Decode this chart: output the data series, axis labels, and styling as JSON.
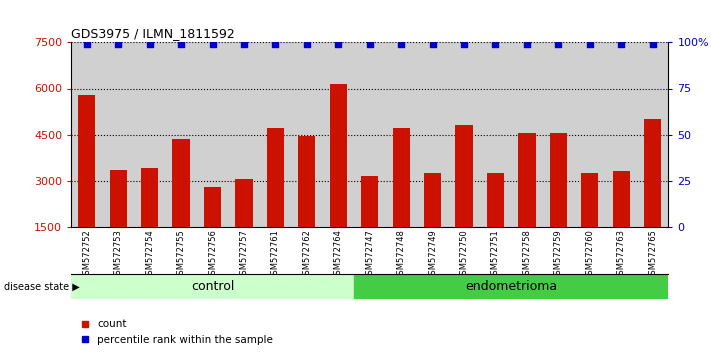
{
  "title": "GDS3975 / ILMN_1811592",
  "samples": [
    "GSM572752",
    "GSM572753",
    "GSM572754",
    "GSM572755",
    "GSM572756",
    "GSM572757",
    "GSM572761",
    "GSM572762",
    "GSM572764",
    "GSM572747",
    "GSM572748",
    "GSM572749",
    "GSM572750",
    "GSM572751",
    "GSM572758",
    "GSM572759",
    "GSM572760",
    "GSM572763",
    "GSM572765"
  ],
  "counts": [
    5800,
    3350,
    3400,
    4350,
    2800,
    3050,
    4700,
    4450,
    6150,
    3150,
    4700,
    3250,
    4800,
    3250,
    4550,
    4550,
    3250,
    3300,
    5000
  ],
  "percentiles": [
    99,
    99,
    99,
    99,
    99,
    99,
    99,
    99,
    99,
    99,
    99,
    99,
    99,
    99,
    99,
    99,
    99,
    99,
    99
  ],
  "control_count": 9,
  "endometrioma_count": 10,
  "ylim_left": [
    1500,
    7500
  ],
  "ylim_right": [
    0,
    100
  ],
  "yticks_left": [
    1500,
    3000,
    4500,
    6000,
    7500
  ],
  "yticks_right": [
    0,
    25,
    50,
    75,
    100
  ],
  "bar_color": "#cc1100",
  "dot_color": "#0000cc",
  "control_bg": "#ccffcc",
  "endometrioma_bg": "#44cc44",
  "sample_bg": "#d0d0d0",
  "label_count": "count",
  "label_percentile": "percentile rank within the sample",
  "disease_state_label": "disease state",
  "control_label": "control",
  "endometrioma_label": "endometrioma",
  "dotted_lines": [
    3000,
    4500,
    6000
  ],
  "bar_width": 0.55
}
